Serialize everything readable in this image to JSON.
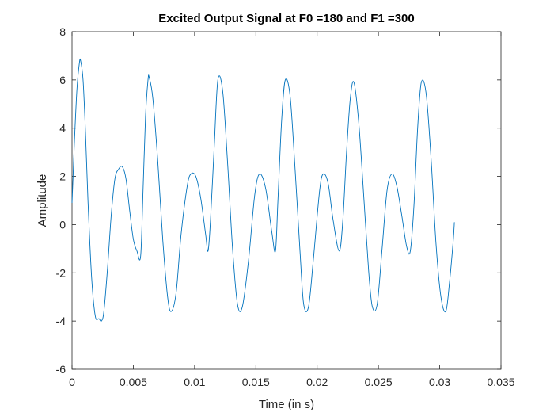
{
  "chart_data": {
    "type": "line",
    "title": "Excited Output Signal at F0 =180 and F1 =300",
    "xlabel": "Time (in s)",
    "ylabel": "Amplitude",
    "xlim": [
      0,
      0.035
    ],
    "ylim": [
      -6,
      8
    ],
    "x_ticks": [
      0,
      0.005,
      0.01,
      0.015,
      0.02,
      0.025,
      0.03,
      0.035
    ],
    "x_tick_labels": [
      "0",
      "0.005",
      "0.01",
      "0.015",
      "0.02",
      "0.025",
      "0.03",
      "0.035"
    ],
    "y_ticks": [
      -6,
      -4,
      -2,
      0,
      2,
      4,
      6,
      8
    ],
    "y_tick_labels": [
      "-6",
      "-4",
      "-2",
      "0",
      "2",
      "4",
      "6",
      "8"
    ],
    "grid": false,
    "line_color": "#0072BD",
    "series": [
      {
        "x": [
          0,
          0.0001,
          0.0002,
          0.0004,
          0.0006,
          0.0007,
          0.0009,
          0.0011,
          0.0013,
          0.0016,
          0.0019,
          0.0022,
          0.0024,
          0.0026,
          0.0029,
          0.0032,
          0.0035,
          0.0038,
          0.0041,
          0.0044,
          0.0047,
          0.005,
          0.0053,
          0.0056,
          0.0058,
          0.006,
          0.0062,
          0.0063,
          0.0066,
          0.007,
          0.0074,
          0.0078,
          0.0081,
          0.0085,
          0.0089,
          0.0094,
          0.0097,
          0.0101,
          0.0105,
          0.0109,
          0.0111,
          0.0113,
          0.0116,
          0.0119,
          0.0123,
          0.0127,
          0.0131,
          0.0135,
          0.0139,
          0.0144,
          0.0149,
          0.0153,
          0.0158,
          0.0163,
          0.0166,
          0.0168,
          0.0171,
          0.0174,
          0.0178,
          0.0182,
          0.0186,
          0.0189,
          0.0193,
          0.0197,
          0.0202,
          0.0205,
          0.0209,
          0.0213,
          0.0218,
          0.0221,
          0.0224,
          0.0227,
          0.023,
          0.0234,
          0.0238,
          0.0242,
          0.0245,
          0.0249,
          0.0253,
          0.0257,
          0.0261,
          0.0265,
          0.0269,
          0.0273,
          0.0276,
          0.0279,
          0.0282,
          0.0285,
          0.0289,
          0.0293,
          0.0297,
          0.0301,
          0.0305,
          0.0308,
          0.0311,
          0.0312
        ],
        "y": [
          0.9,
          2.2,
          3.5,
          5.6,
          6.7,
          6.8,
          6.0,
          3.8,
          1.0,
          -2.2,
          -3.8,
          -3.9,
          -4.0,
          -3.6,
          -1.8,
          0.4,
          1.9,
          2.3,
          2.4,
          1.9,
          0.6,
          -0.6,
          -1.1,
          -1.3,
          1.5,
          4.5,
          6.0,
          6.1,
          5.2,
          2.6,
          -0.6,
          -3.0,
          -3.6,
          -2.8,
          -0.4,
          1.6,
          2.1,
          2.0,
          1.1,
          -0.4,
          -1.1,
          0.2,
          3.2,
          6.0,
          5.5,
          2.5,
          -1.0,
          -3.3,
          -3.4,
          -1.5,
          1.2,
          2.1,
          1.5,
          -0.3,
          -1.1,
          1.0,
          4.3,
          6.0,
          5.3,
          2.3,
          -1.1,
          -3.3,
          -3.4,
          -1.4,
          1.4,
          2.1,
          1.7,
          0.2,
          -1.1,
          0.2,
          3.0,
          5.2,
          5.9,
          4.2,
          1.2,
          -1.9,
          -3.4,
          -3.3,
          -1.0,
          1.4,
          2.1,
          1.6,
          0.4,
          -0.9,
          -1.1,
          0.8,
          4.0,
          5.9,
          5.4,
          2.7,
          -0.8,
          -3.0,
          -3.6,
          -2.4,
          -0.7,
          0.1
        ]
      }
    ]
  }
}
